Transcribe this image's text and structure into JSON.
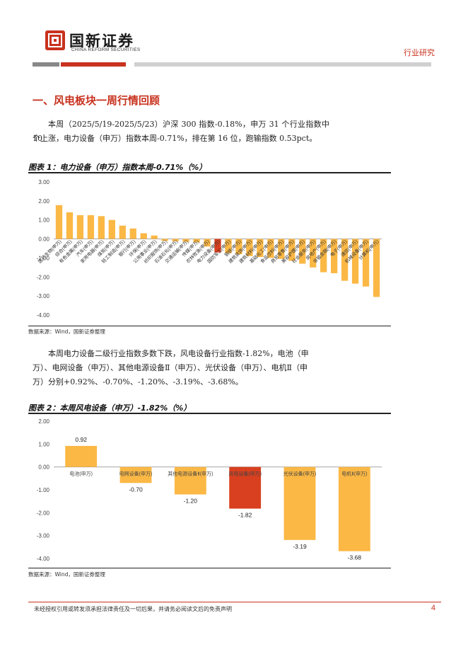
{
  "header": {
    "brand_cn": "国新证券",
    "brand_en": "CHINA REFORM SECURITIES",
    "report_type": "行业研究",
    "colors": {
      "brand_red": "#c8321e",
      "bar_yellow": "#fbb845",
      "highlight_red": "#d8401f"
    }
  },
  "section": {
    "title": "一、风电板块一周行情回顾"
  },
  "paragraphs": {
    "p1_line1": "本周（2025/5/19-2025/5/23）沪深 300 指数-0.18%，申万 31 个行业指数中 10",
    "p1_line2": "个上涨，电力设备（申万）指数本周-0.71%，排在第 16 位，跑输指数 0.53pct。",
    "p2_line1": "本周电力设备二级行业指数多数下跌，风电设备行业指数-1.82%，电池（申",
    "p2_line2": "万）、电网设备（申万）、其他电源设备Ⅱ（申万）、光伏设备（申万）、电机Ⅱ（申",
    "p2_line3": "万）分别+0.92%、-0.70%、-1.20%、-3.19%、-3.68%。"
  },
  "figure1": {
    "title": "图表 1：电力设备（申万）指数本周-0.71%（%）",
    "source": "数据来源：Wind，国新证券整理"
  },
  "figure2": {
    "title": "图表 2：本周风电设备（申万）-1.82%（%）",
    "source": "数据来源：Wind，国新证券整理"
  },
  "chart_data": [
    {
      "type": "bar",
      "categories": [
        "医药生物(申万)",
        "综合(申万)",
        "有色金属(申万)",
        "汽车(申万)",
        "家用电器(申万)",
        "煤炭(申万)",
        "轻工制造(申万)",
        "银行(申万)",
        "环保(申万)",
        "公用事业(申万)",
        "纺织服饰(申万)",
        "石油石化(申万)",
        "交通运输(申万)",
        "传媒(申万)",
        "农林牧渔(申万)",
        "电力设备(申万)",
        "国防军工(申万)",
        "钢铁(申万)",
        "建筑装饰(申万)",
        "建筑材料(申万)",
        "基础化工(申万)",
        "食品饮料(申万)",
        "商贸零售(申万)",
        "美容护理(申万)",
        "社会服务(申万)",
        "房地产(申万)",
        "非银金融(申万)",
        "电子(申万)",
        "通信(申万)",
        "机械设备(申万)",
        "计算机(申万)"
      ],
      "values": [
        1.78,
        1.4,
        1.25,
        1.25,
        1.2,
        1.0,
        0.7,
        0.55,
        0.3,
        0.18,
        -0.1,
        -0.12,
        -0.15,
        -0.18,
        -0.4,
        -0.71,
        -0.75,
        -0.8,
        -0.9,
        -0.95,
        -1.0,
        -1.05,
        -1.15,
        -1.3,
        -1.5,
        -1.75,
        -1.8,
        -2.2,
        -2.35,
        -2.5,
        -3.05
      ],
      "highlight_index": 15,
      "ylim": [
        -4.0,
        3.0
      ],
      "yticks": [
        "3.00",
        "2.00",
        "1.00",
        "0.00",
        "-1.00",
        "-2.00",
        "-3.00",
        "-4.00"
      ],
      "grid": false
    },
    {
      "type": "bar",
      "categories": [
        "电池(申万)",
        "电网设备(申万)",
        "其他电源设备Ⅱ(申万)",
        "风电设备(申万)",
        "光伏设备(申万)",
        "电机Ⅱ(申万)"
      ],
      "values": [
        0.92,
        -0.7,
        -1.2,
        -1.82,
        -3.19,
        -3.68
      ],
      "labels": [
        "0.92",
        "-0.70",
        "-1.20",
        "-1.82",
        "-3.19",
        "-3.68"
      ],
      "highlight_index": 3,
      "ylim": [
        -4.0,
        2.0
      ],
      "yticks": [
        "2.00",
        "1.00",
        "0.00",
        "-1.00",
        "-2.00",
        "-3.00",
        "-4.00"
      ],
      "grid": false
    }
  ],
  "footer": {
    "disclaimer": "未经授权引用或转发须承担法律责任及一切后果，并请务必阅读文后的免责声明",
    "page": "4"
  }
}
